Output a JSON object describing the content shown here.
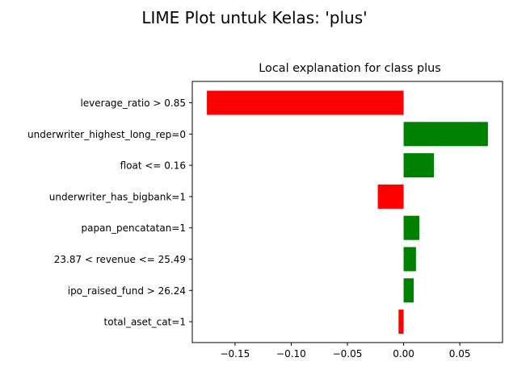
{
  "figure": {
    "suptitle": "LIME Plot untuk Kelas: 'plus'"
  },
  "chart_data": {
    "type": "bar",
    "orientation": "horizontal",
    "title": "Local explanation for class plus",
    "xlabel": "",
    "ylabel": "",
    "xlim": [
      -0.188,
      0.088
    ],
    "xticks": [
      -0.15,
      -0.1,
      -0.05,
      0.0,
      0.05
    ],
    "xtick_labels": [
      "−0.15",
      "−0.10",
      "−0.05",
      "0.00",
      "0.05"
    ],
    "grid": false,
    "legend": "none",
    "colors": {
      "positive": "#008000",
      "negative": "#ff0000"
    },
    "categories": [
      "leverage_ratio > 0.85",
      "underwriter_highest_long_rep=0",
      "float <= 0.16",
      "underwriter_has_bigbank=1",
      "papan_pencatatan=1",
      "23.87 < revenue <= 25.49",
      "ipo_raised_fund > 26.24",
      "total_aset_cat=1"
    ],
    "values": [
      -0.175,
      0.075,
      0.027,
      -0.023,
      0.014,
      0.011,
      0.009,
      -0.0045
    ]
  }
}
